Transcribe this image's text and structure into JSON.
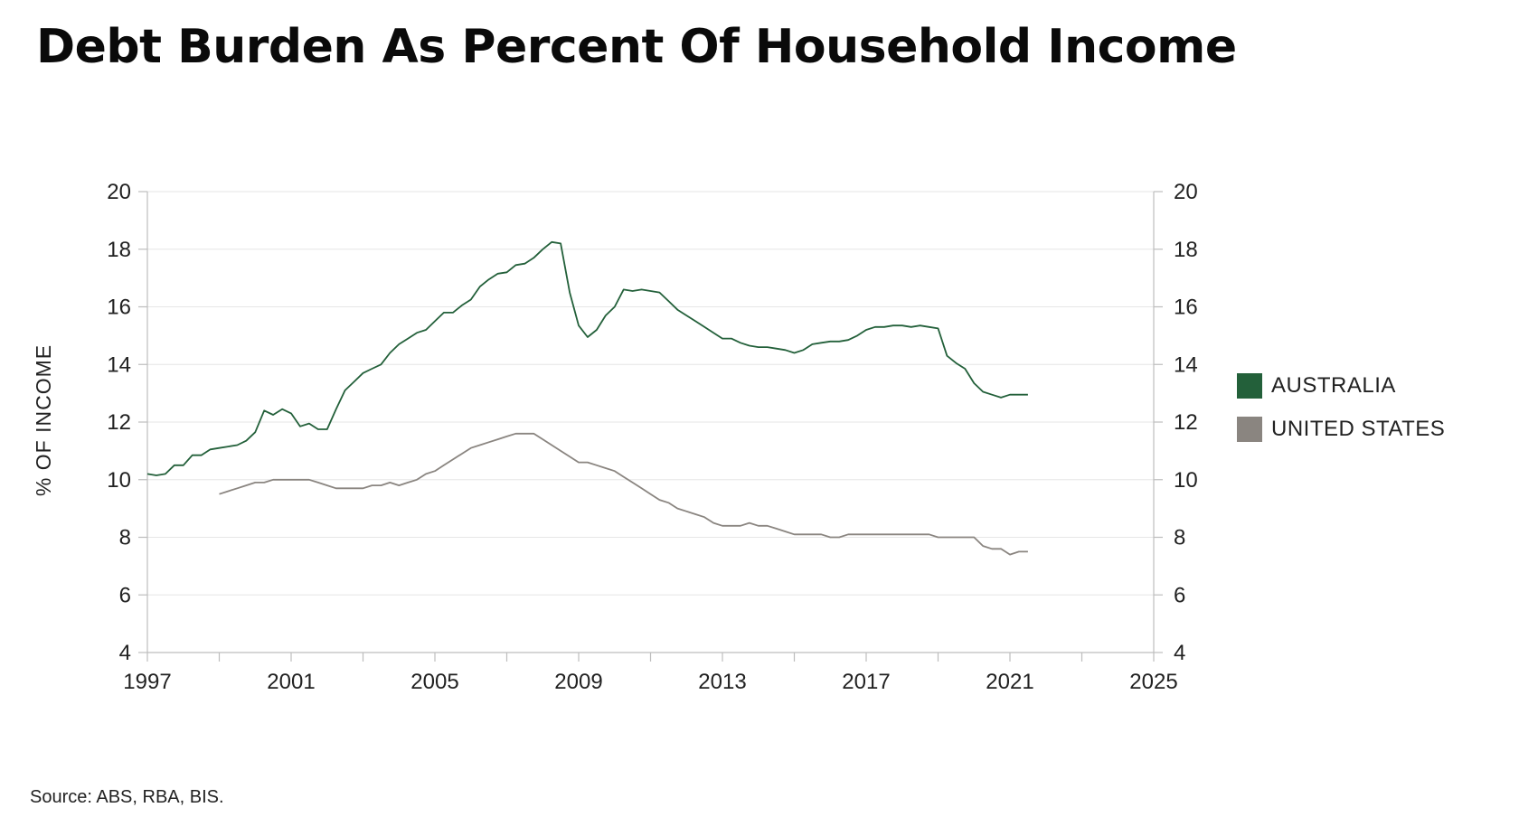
{
  "title": "Debt Burden As Percent Of Household Income",
  "source": "Source: ABS, RBA, BIS.",
  "chart_data": {
    "type": "line",
    "title": "Debt Burden As Percent Of Household Income",
    "ylabel": "% OF INCOME",
    "xlabel": "",
    "xlim": [
      1997,
      2025
    ],
    "ylim": [
      4,
      20
    ],
    "x_ticks": [
      1997,
      2001,
      2005,
      2009,
      2013,
      2017,
      2021,
      2025
    ],
    "y_ticks": [
      4,
      6,
      8,
      10,
      12,
      14,
      16,
      18,
      20
    ],
    "grid": true,
    "legend_position": "right",
    "dual_y_axis": true,
    "series": [
      {
        "name": "AUSTRALIA",
        "color": "#23603a",
        "x": [
          1997.0,
          1997.25,
          1997.5,
          1997.75,
          1998.0,
          1998.25,
          1998.5,
          1998.75,
          1999.0,
          1999.25,
          1999.5,
          1999.75,
          2000.0,
          2000.25,
          2000.5,
          2000.75,
          2001.0,
          2001.25,
          2001.5,
          2001.75,
          2002.0,
          2002.25,
          2002.5,
          2002.75,
          2003.0,
          2003.25,
          2003.5,
          2003.75,
          2004.0,
          2004.25,
          2004.5,
          2004.75,
          2005.0,
          2005.25,
          2005.5,
          2005.75,
          2006.0,
          2006.25,
          2006.5,
          2006.75,
          2007.0,
          2007.25,
          2007.5,
          2007.75,
          2008.0,
          2008.25,
          2008.5,
          2008.75,
          2009.0,
          2009.25,
          2009.5,
          2009.75,
          2010.0,
          2010.25,
          2010.5,
          2010.75,
          2011.0,
          2011.25,
          2011.5,
          2011.75,
          2012.0,
          2012.25,
          2012.5,
          2012.75,
          2013.0,
          2013.25,
          2013.5,
          2013.75,
          2014.0,
          2014.25,
          2014.5,
          2014.75,
          2015.0,
          2015.25,
          2015.5,
          2015.75,
          2016.0,
          2016.25,
          2016.5,
          2016.75,
          2017.0,
          2017.25,
          2017.5,
          2017.75,
          2018.0,
          2018.25,
          2018.5,
          2018.75,
          2019.0,
          2019.25,
          2019.5,
          2019.75,
          2020.0,
          2020.25,
          2020.5,
          2020.75,
          2021.0,
          2021.25,
          2021.5
        ],
        "values": [
          10.2,
          10.15,
          10.2,
          10.5,
          10.5,
          10.85,
          10.85,
          11.05,
          11.1,
          11.15,
          11.2,
          11.35,
          11.65,
          12.4,
          12.25,
          12.45,
          12.3,
          11.85,
          11.95,
          11.75,
          11.75,
          12.45,
          13.1,
          13.4,
          13.7,
          13.85,
          14.0,
          14.4,
          14.7,
          14.9,
          15.1,
          15.2,
          15.5,
          15.8,
          15.8,
          16.05,
          16.25,
          16.7,
          16.95,
          17.15,
          17.2,
          17.45,
          17.5,
          17.7,
          18.0,
          18.25,
          18.2,
          16.5,
          15.35,
          14.95,
          15.2,
          15.7,
          16.0,
          16.6,
          16.55,
          16.6,
          16.55,
          16.5,
          16.2,
          15.9,
          15.7,
          15.5,
          15.3,
          15.1,
          14.9,
          14.9,
          14.75,
          14.65,
          14.6,
          14.6,
          14.55,
          14.5,
          14.4,
          14.5,
          14.7,
          14.75,
          14.8,
          14.8,
          14.85,
          15.0,
          15.2,
          15.3,
          15.3,
          15.35,
          15.35,
          15.3,
          15.35,
          15.3,
          15.25,
          14.3,
          14.05,
          13.85,
          13.35,
          13.05,
          12.95,
          12.85,
          12.95,
          12.95,
          12.95
        ]
      },
      {
        "name": "UNITED STATES",
        "color": "#8a8580",
        "x": [
          1999.0,
          1999.25,
          1999.5,
          1999.75,
          2000.0,
          2000.25,
          2000.5,
          2000.75,
          2001.0,
          2001.25,
          2001.5,
          2001.75,
          2002.0,
          2002.25,
          2002.5,
          2002.75,
          2003.0,
          2003.25,
          2003.5,
          2003.75,
          2004.0,
          2004.25,
          2004.5,
          2004.75,
          2005.0,
          2005.25,
          2005.5,
          2005.75,
          2006.0,
          2006.25,
          2006.5,
          2006.75,
          2007.0,
          2007.25,
          2007.5,
          2007.75,
          2008.0,
          2008.25,
          2008.5,
          2008.75,
          2009.0,
          2009.25,
          2009.5,
          2009.75,
          2010.0,
          2010.25,
          2010.5,
          2010.75,
          2011.0,
          2011.25,
          2011.5,
          2011.75,
          2012.0,
          2012.25,
          2012.5,
          2012.75,
          2013.0,
          2013.25,
          2013.5,
          2013.75,
          2014.0,
          2014.25,
          2014.5,
          2014.75,
          2015.0,
          2015.25,
          2015.5,
          2015.75,
          2016.0,
          2016.25,
          2016.5,
          2016.75,
          2017.0,
          2017.25,
          2017.5,
          2017.75,
          2018.0,
          2018.25,
          2018.5,
          2018.75,
          2019.0,
          2019.25,
          2019.5,
          2019.75,
          2020.0,
          2020.25,
          2020.5,
          2020.75,
          2021.0,
          2021.25,
          2021.5
        ],
        "values": [
          9.5,
          9.6,
          9.7,
          9.8,
          9.9,
          9.9,
          10.0,
          10.0,
          10.0,
          10.0,
          10.0,
          9.9,
          9.8,
          9.7,
          9.7,
          9.7,
          9.7,
          9.8,
          9.8,
          9.9,
          9.8,
          9.9,
          10.0,
          10.2,
          10.3,
          10.5,
          10.7,
          10.9,
          11.1,
          11.2,
          11.3,
          11.4,
          11.5,
          11.6,
          11.6,
          11.6,
          11.4,
          11.2,
          11.0,
          10.8,
          10.6,
          10.6,
          10.5,
          10.4,
          10.3,
          10.1,
          9.9,
          9.7,
          9.5,
          9.3,
          9.2,
          9.0,
          8.9,
          8.8,
          8.7,
          8.5,
          8.4,
          8.4,
          8.4,
          8.5,
          8.4,
          8.4,
          8.3,
          8.2,
          8.1,
          8.1,
          8.1,
          8.1,
          8.0,
          8.0,
          8.1,
          8.1,
          8.1,
          8.1,
          8.1,
          8.1,
          8.1,
          8.1,
          8.1,
          8.1,
          8.0,
          8.0,
          8.0,
          8.0,
          8.0,
          7.7,
          7.6,
          7.6,
          7.4,
          7.5,
          7.5
        ]
      }
    ]
  }
}
